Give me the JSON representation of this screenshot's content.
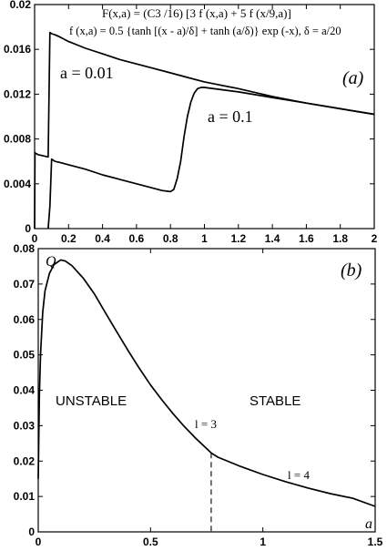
{
  "chart_data": [
    {
      "type": "line",
      "panel_label": "(a)",
      "formula_line1": "F(x,a) = (C3 /16) [3 f (x,a) + 5 f (x/9,a)]",
      "formula_line2": "f (x,a) = 0.5 {tanh [(x - a)/δ] + tanh (a/δ)} exp (-x), δ = a/20",
      "xlim": [
        0,
        2
      ],
      "ylim": [
        0,
        0.02
      ],
      "xticks": [
        "0",
        "0.2",
        "0.4",
        "0.6",
        "0.8",
        "1",
        "1.2",
        "1.4",
        "1.6",
        "1.8",
        "2"
      ],
      "yticks": [
        "0",
        "0.004",
        "0.008",
        "0.012",
        "0.016",
        "0.02"
      ],
      "series": [
        {
          "name": "a = 0.01",
          "x": [
            0,
            0.002,
            0.005,
            0.01,
            0.02,
            0.05,
            0.08,
            0.09,
            0.1,
            0.12,
            0.15,
            0.2,
            0.3,
            0.4,
            0.5,
            0.6,
            0.7,
            0.8,
            0.9,
            1.0,
            1.2,
            1.4,
            1.6,
            1.8,
            2.0
          ],
          "y": [
            0,
            0.0068,
            0.0067,
            0.0067,
            0.0066,
            0.0065,
            0.0064,
            0.0175,
            0.0174,
            0.0173,
            0.0171,
            0.0167,
            0.0161,
            0.0156,
            0.0151,
            0.0147,
            0.0143,
            0.0139,
            0.0135,
            0.0131,
            0.0125,
            0.0118,
            0.0112,
            0.0107,
            0.0102
          ]
        },
        {
          "name": "a = 0.1",
          "x": [
            0.08,
            0.09,
            0.1,
            0.12,
            0.15,
            0.2,
            0.3,
            0.4,
            0.5,
            0.6,
            0.7,
            0.75,
            0.8,
            0.82,
            0.84,
            0.86,
            0.88,
            0.9,
            0.92,
            0.94,
            0.96,
            0.98,
            1.0,
            1.2,
            1.4,
            1.6,
            1.8,
            2.0
          ],
          "y": [
            0,
            0.002,
            0.0062,
            0.006,
            0.0059,
            0.0057,
            0.0053,
            0.0048,
            0.0044,
            0.004,
            0.0036,
            0.0034,
            0.0033,
            0.0035,
            0.0045,
            0.006,
            0.0082,
            0.01,
            0.0113,
            0.0121,
            0.0125,
            0.0126,
            0.0126,
            0.0122,
            0.0117,
            0.0112,
            0.0107,
            0.0102
          ]
        }
      ]
    },
    {
      "type": "line",
      "panel_label": "(b)",
      "ylabel": "Q",
      "xlabel": "a",
      "xlim": [
        0,
        1.5
      ],
      "ylim": [
        0,
        0.08
      ],
      "xticks": [
        "0",
        "0.5",
        "1",
        "1.5"
      ],
      "yticks": [
        "0",
        "0.01",
        "0.02",
        "0.03",
        "0.04",
        "0.05",
        "0.06",
        "0.07",
        "0.08"
      ],
      "region_labels": [
        "UNSTABLE",
        "STABLE"
      ],
      "annotations": [
        "l = 3",
        "l = 4"
      ],
      "boundary_x": 0.77,
      "series": [
        {
          "name": "",
          "x": [
            0.0,
            0.005,
            0.01,
            0.02,
            0.03,
            0.05,
            0.07,
            0.1,
            0.12,
            0.15,
            0.2,
            0.25,
            0.3,
            0.35,
            0.4,
            0.45,
            0.5,
            0.55,
            0.6,
            0.65,
            0.7,
            0.75,
            0.77,
            0.8,
            0.9,
            1.0,
            1.1,
            1.2,
            1.3,
            1.4,
            1.5
          ],
          "y": [
            0.015,
            0.038,
            0.05,
            0.062,
            0.068,
            0.073,
            0.0755,
            0.0768,
            0.0765,
            0.0752,
            0.0717,
            0.0672,
            0.0618,
            0.0565,
            0.0512,
            0.0462,
            0.0415,
            0.0373,
            0.0334,
            0.0298,
            0.0265,
            0.0235,
            0.0223,
            0.0211,
            0.0185,
            0.0162,
            0.0142,
            0.0124,
            0.0108,
            0.0095,
            0.0072
          ]
        }
      ]
    }
  ]
}
